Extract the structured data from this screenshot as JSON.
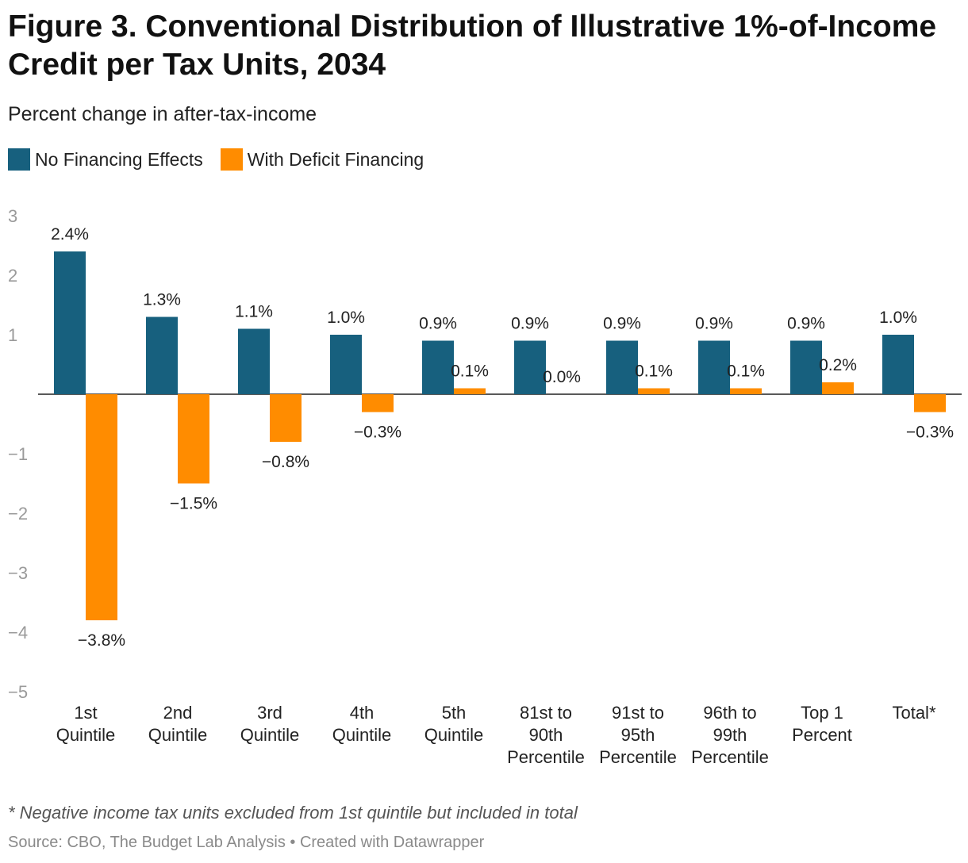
{
  "header": {
    "title": "Figure 3. Conventional Distribution of Illustrative 1%-of-Income Credit per Tax Units, 2034",
    "subtitle": "Percent change in after-tax-income"
  },
  "footer": {
    "note": "* Negative income tax units excluded from 1st quintile but included in total",
    "source": "Source: CBO, The Budget Lab Analysis • Created with Datawrapper"
  },
  "chart_data": {
    "type": "bar",
    "title": "Figure 3. Conventional Distribution of Illustrative 1%-of-Income Credit per Tax Units, 2034",
    "subtitle": "Percent change in after-tax-income",
    "xlabel": "",
    "ylabel": "",
    "ylim": [
      -5,
      3
    ],
    "yticks": [
      3,
      2,
      1,
      -1,
      -2,
      -3,
      -4,
      -5
    ],
    "ytick_labels": [
      "3",
      "2",
      "1",
      "−1",
      "−2",
      "−3",
      "−4",
      "−5"
    ],
    "grid": false,
    "legend_position": "top-left",
    "categories": [
      [
        "1st",
        "Quintile"
      ],
      [
        "2nd",
        "Quintile"
      ],
      [
        "3rd",
        "Quintile"
      ],
      [
        "4th",
        "Quintile"
      ],
      [
        "5th",
        "Quintile"
      ],
      [
        "81st to",
        "90th",
        "Percentile"
      ],
      [
        "91st to",
        "95th",
        "Percentile"
      ],
      [
        "96th to",
        "99th",
        "Percentile"
      ],
      [
        "Top 1",
        "Percent"
      ],
      [
        "Total*"
      ]
    ],
    "series": [
      {
        "name": "No Financing Effects",
        "color": "#17607e",
        "values": [
          2.4,
          1.3,
          1.1,
          1.0,
          0.9,
          0.9,
          0.9,
          0.9,
          0.9,
          1.0
        ],
        "labels": [
          "2.4%",
          "1.3%",
          "1.1%",
          "1.0%",
          "0.9%",
          "0.9%",
          "0.9%",
          "0.9%",
          "0.9%",
          "1.0%"
        ]
      },
      {
        "name": "With Deficit Financing",
        "color": "#ff8c00",
        "values": [
          -3.8,
          -1.5,
          -0.8,
          -0.3,
          0.1,
          0.0,
          0.1,
          0.1,
          0.2,
          -0.3
        ],
        "labels": [
          "−3.8%",
          "−1.5%",
          "−0.8%",
          "−0.3%",
          "0.1%",
          "0.0%",
          "0.1%",
          "0.1%",
          "0.2%",
          "−0.3%"
        ]
      }
    ]
  }
}
